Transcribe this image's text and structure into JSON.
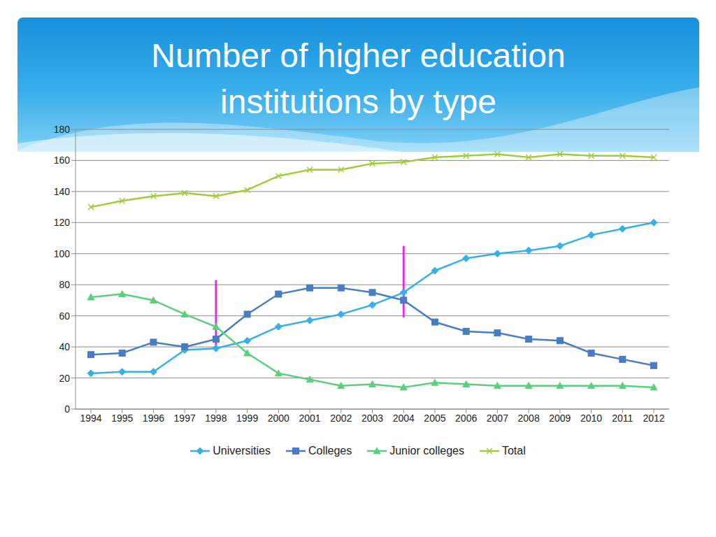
{
  "chart_data": {
    "type": "line",
    "title": "Number of higher education institutions by type",
    "categories": [
      "1994",
      "1995",
      "1996",
      "1997",
      "1998",
      "1999",
      "2000",
      "2001",
      "2002",
      "2003",
      "2004",
      "2005",
      "2006",
      "2007",
      "2008",
      "2009",
      "2010",
      "2011",
      "2012"
    ],
    "series": [
      {
        "name": "Universities",
        "color": "#36b0e6",
        "marker": "diamond",
        "values": [
          23,
          24,
          24,
          38,
          39,
          44,
          53,
          57,
          61,
          67,
          75,
          89,
          97,
          100,
          102,
          105,
          112,
          116,
          120
        ]
      },
      {
        "name": "Colleges",
        "color": "#4a7cc4",
        "marker": "square",
        "values": [
          35,
          36,
          43,
          40,
          45,
          61,
          74,
          78,
          78,
          75,
          70,
          56,
          50,
          49,
          45,
          44,
          36,
          32,
          28
        ]
      },
      {
        "name": "Junior colleges",
        "color": "#5ccf7c",
        "marker": "triangle",
        "values": [
          72,
          74,
          70,
          61,
          53,
          36,
          23,
          19,
          15,
          16,
          14,
          17,
          16,
          15,
          15,
          15,
          15,
          15,
          14
        ]
      },
      {
        "name": "Total",
        "color": "#9fcc3a",
        "marker": "x",
        "values": [
          130,
          134,
          137,
          139,
          137,
          141,
          150,
          154,
          154,
          158,
          159,
          162,
          163,
          164,
          162,
          164,
          163,
          163,
          162
        ]
      }
    ],
    "ylim": [
      0,
      180
    ],
    "yticks": [
      0,
      20,
      40,
      60,
      80,
      100,
      120,
      140,
      160,
      180
    ],
    "grid": true,
    "legend": "bottom",
    "vertical_lines": [
      {
        "x": "1998",
        "y": [
          38,
          83
        ],
        "color": "#e62ee6"
      },
      {
        "x": "2004",
        "y": [
          59,
          105
        ],
        "color": "#e62ee6"
      }
    ]
  }
}
